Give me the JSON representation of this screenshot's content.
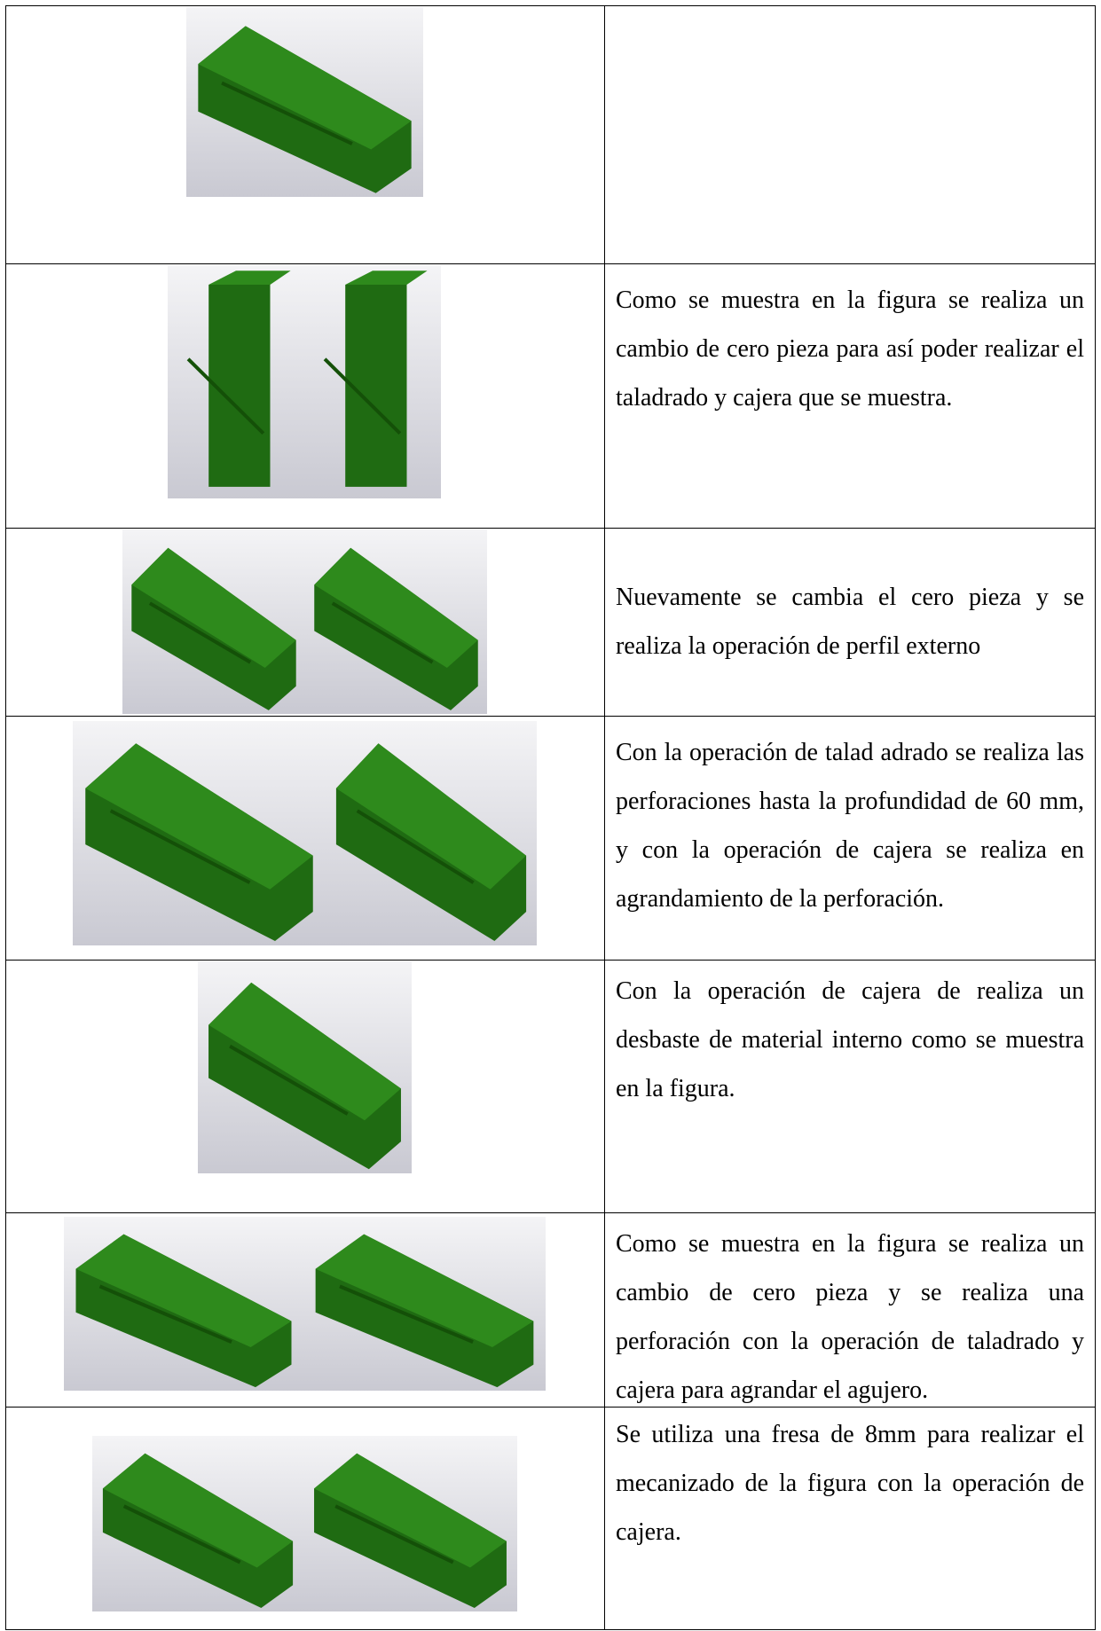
{
  "table": {
    "rows": [
      {},
      {
        "description": "Como se muestra en la figura se realiza un cambio de cero pieza para así poder realizar el taladrado y cajera que se muestra."
      },
      {
        "description": "Nuevamente se cambia el cero pieza y se realiza la operación de perfil externo"
      },
      {
        "description": "Con la operación de talad adrado se realiza las perforaciones hasta la profundidad de 60 mm, y con la operación de cajera se realiza en agrandamiento de la perforación."
      },
      {
        "description": "Con la operación de cajera de realiza un desbaste de material interno como se muestra en la figura."
      },
      {
        "description": "Como se muestra en la figura se realiza un cambio de cero pieza y se realiza una perforación con la operación de taladrado y cajera para agrandar el agujero."
      },
      {
        "description": "Se utiliza una fresa de 8mm para realizar el mecanizado de la figura con la operación de cajera."
      }
    ]
  }
}
